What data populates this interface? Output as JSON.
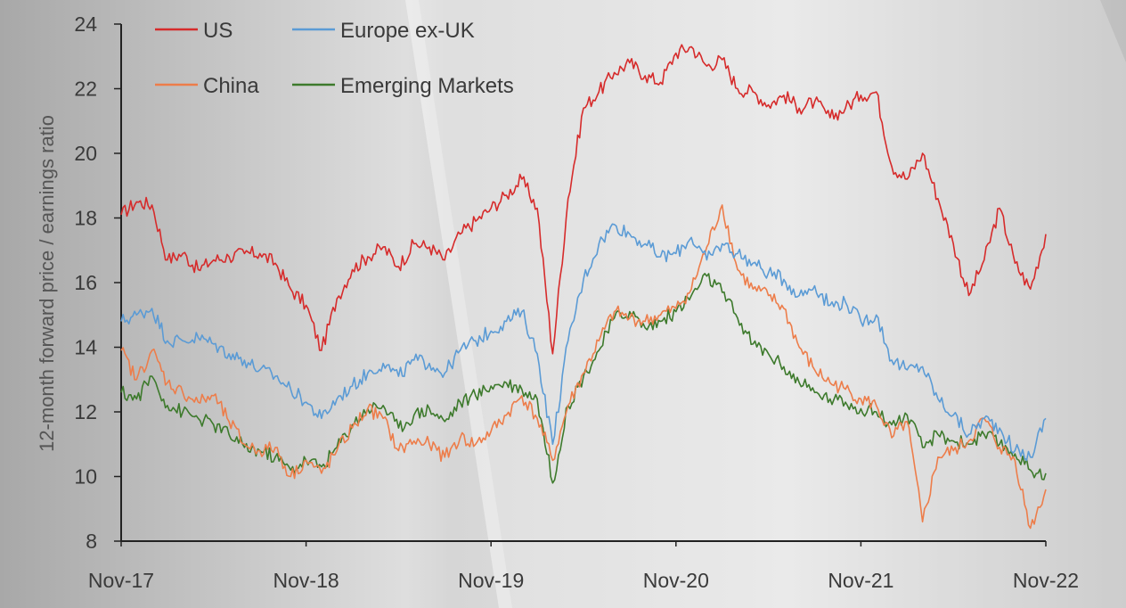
{
  "chart_data": {
    "type": "line",
    "title": "",
    "xlabel": "",
    "ylabel": "12-month forward price / earnings ratio",
    "ylim": [
      8,
      24
    ],
    "yticks": [
      8,
      10,
      12,
      14,
      16,
      18,
      20,
      22,
      24
    ],
    "xticks": [
      "Nov-17",
      "Nov-18",
      "Nov-19",
      "Nov-20",
      "Nov-21",
      "Nov-22"
    ],
    "legend_position": "top-left",
    "grid": false,
    "x": [
      "Nov-17",
      "Dec-17",
      "Jan-18",
      "Feb-18",
      "Mar-18",
      "Apr-18",
      "May-18",
      "Jun-18",
      "Jul-18",
      "Aug-18",
      "Sep-18",
      "Oct-18",
      "Nov-18",
      "Dec-18",
      "Jan-19",
      "Feb-19",
      "Mar-19",
      "Apr-19",
      "May-19",
      "Jun-19",
      "Jul-19",
      "Aug-19",
      "Sep-19",
      "Oct-19",
      "Nov-19",
      "Dec-19",
      "Jan-20",
      "Feb-20",
      "Mar-20",
      "Apr-20",
      "May-20",
      "Jun-20",
      "Jul-20",
      "Aug-20",
      "Sep-20",
      "Oct-20",
      "Nov-20",
      "Dec-20",
      "Jan-21",
      "Feb-21",
      "Mar-21",
      "Apr-21",
      "May-21",
      "Jun-21",
      "Jul-21",
      "Aug-21",
      "Sep-21",
      "Oct-21",
      "Nov-21",
      "Dec-21",
      "Jan-22",
      "Feb-22",
      "Mar-22",
      "Apr-22",
      "May-22",
      "Jun-22",
      "Jul-22",
      "Aug-22",
      "Sep-22",
      "Oct-22",
      "Nov-22"
    ],
    "series": [
      {
        "name": "US",
        "color": "#d62b2b",
        "values": [
          18.1,
          18.5,
          18.4,
          16.7,
          16.9,
          16.4,
          16.7,
          16.8,
          16.9,
          16.9,
          16.6,
          15.8,
          15.3,
          13.9,
          15.5,
          16.4,
          16.8,
          17.1,
          16.5,
          17.2,
          17.1,
          16.7,
          17.5,
          17.9,
          18.3,
          18.7,
          19.2,
          18.3,
          13.8,
          18.6,
          21.4,
          21.9,
          22.5,
          22.8,
          22.4,
          22.2,
          23.1,
          23.3,
          22.7,
          22.9,
          22.0,
          21.9,
          21.5,
          21.8,
          21.4,
          21.6,
          21.1,
          21.4,
          21.8,
          21.9,
          19.6,
          19.2,
          20.0,
          18.6,
          17.2,
          15.6,
          16.7,
          18.3,
          16.6,
          15.8,
          17.5
        ]
      },
      {
        "name": "Europe ex-UK",
        "color": "#5b9bd5",
        "values": [
          14.8,
          15.0,
          15.2,
          14.2,
          14.2,
          14.3,
          14.1,
          13.8,
          13.6,
          13.3,
          13.1,
          12.7,
          12.3,
          11.8,
          12.4,
          12.8,
          13.2,
          13.5,
          13.1,
          13.6,
          13.5,
          13.2,
          13.9,
          14.2,
          14.5,
          14.8,
          15.1,
          13.8,
          11.0,
          14.2,
          16.1,
          17.2,
          17.8,
          17.5,
          17.2,
          16.8,
          16.9,
          17.4,
          16.7,
          17.2,
          16.9,
          16.6,
          16.3,
          16.1,
          15.6,
          15.9,
          15.3,
          15.4,
          14.8,
          15.0,
          13.6,
          13.3,
          13.4,
          12.4,
          11.9,
          11.3,
          11.8,
          11.5,
          10.8,
          10.6,
          11.8
        ]
      },
      {
        "name": "China",
        "color": "#ed7d4a",
        "values": [
          13.9,
          13.0,
          13.9,
          12.9,
          12.6,
          12.3,
          12.5,
          11.7,
          11.0,
          10.8,
          10.9,
          10.0,
          10.5,
          10.1,
          10.8,
          11.5,
          12.1,
          11.8,
          10.8,
          11.1,
          11.0,
          10.6,
          11.2,
          11.0,
          11.4,
          11.9,
          12.5,
          11.8,
          10.5,
          12.2,
          13.2,
          14.2,
          15.1,
          14.9,
          14.8,
          15.0,
          15.2,
          15.8,
          17.1,
          18.4,
          16.4,
          15.8,
          15.6,
          15.2,
          14.0,
          13.3,
          12.9,
          12.7,
          12.4,
          12.2,
          11.2,
          11.7,
          8.6,
          10.6,
          10.8,
          11.1,
          11.8,
          10.9,
          10.5,
          8.4,
          9.6
        ]
      },
      {
        "name": "Emerging Markets",
        "color": "#3d7a2c",
        "values": [
          12.6,
          12.4,
          13.1,
          12.2,
          12.0,
          11.8,
          11.6,
          11.3,
          10.9,
          10.8,
          10.6,
          10.2,
          10.5,
          10.3,
          10.9,
          11.6,
          12.1,
          12.2,
          11.5,
          11.9,
          12.1,
          11.7,
          12.3,
          12.5,
          12.8,
          12.9,
          12.7,
          12.4,
          9.8,
          12.2,
          13.1,
          13.9,
          14.9,
          15.1,
          14.6,
          14.8,
          15.1,
          15.6,
          16.2,
          15.7,
          14.9,
          14.1,
          13.8,
          13.4,
          12.9,
          12.6,
          12.4,
          12.3,
          12.1,
          12.0,
          11.6,
          11.9,
          10.9,
          11.3,
          11.1,
          11.0,
          11.3,
          11.0,
          10.7,
          10.2,
          10.1
        ]
      }
    ]
  }
}
